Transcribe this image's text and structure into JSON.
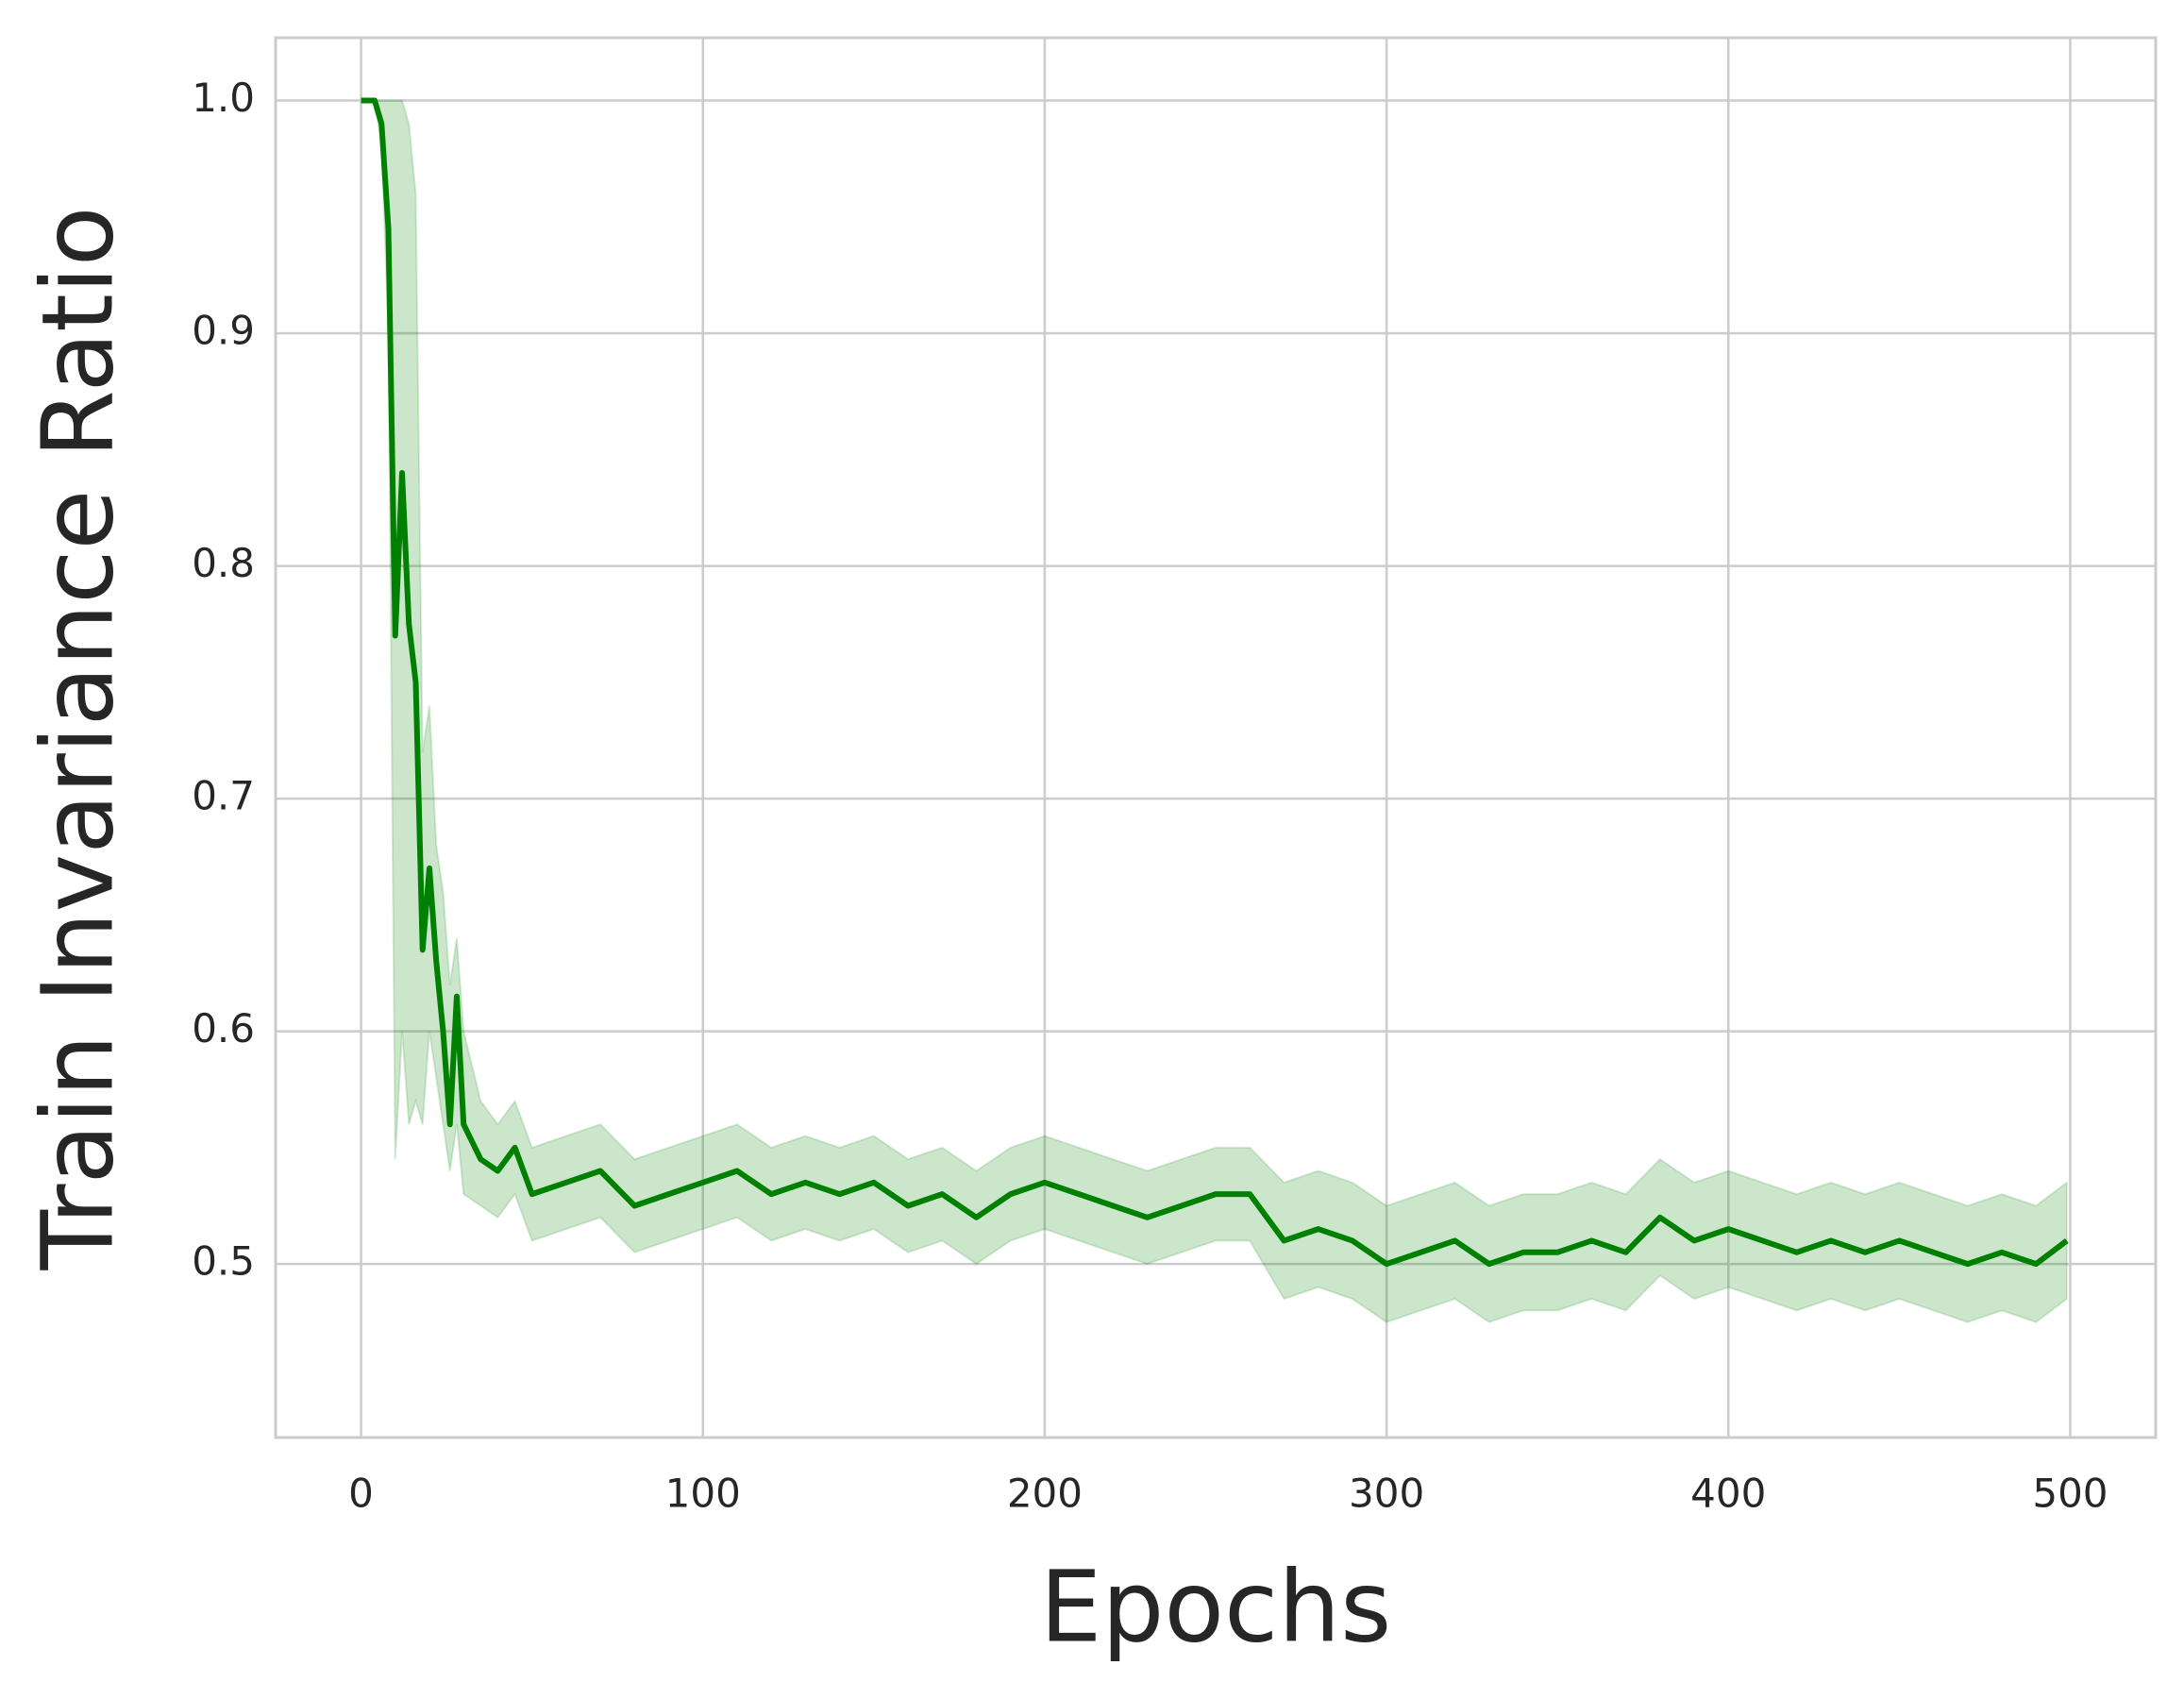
{
  "chart_data": {
    "type": "line",
    "xlabel": "Epochs",
    "ylabel": "Train Invariance Ratio",
    "x": [
      0,
      2,
      4,
      6,
      8,
      10,
      12,
      14,
      16,
      18,
      20,
      22,
      24,
      26,
      28,
      30,
      35,
      40,
      45,
      50,
      60,
      70,
      80,
      90,
      100,
      110,
      120,
      130,
      140,
      150,
      160,
      170,
      180,
      190,
      200,
      210,
      220,
      230,
      240,
      250,
      260,
      270,
      280,
      290,
      300,
      310,
      320,
      330,
      340,
      350,
      360,
      370,
      380,
      390,
      400,
      410,
      420,
      430,
      440,
      450,
      460,
      470,
      480,
      490,
      499
    ],
    "series": [
      {
        "color": "#008000",
        "values": [
          1,
          1,
          1,
          0.99,
          0.945,
          0.77,
          0.84,
          0.775,
          0.75,
          0.635,
          0.67,
          0.63,
          0.6,
          0.56,
          0.615,
          0.56,
          0.545,
          0.54,
          0.55,
          0.53,
          0.535,
          0.54,
          0.525,
          0.53,
          0.535,
          0.54,
          0.53,
          0.535,
          0.53,
          0.535,
          0.525,
          0.53,
          0.52,
          0.53,
          0.535,
          0.53,
          0.525,
          0.52,
          0.525,
          0.53,
          0.53,
          0.51,
          0.515,
          0.51,
          0.5,
          0.505,
          0.51,
          0.5,
          0.505,
          0.505,
          0.51,
          0.505,
          0.52,
          0.51,
          0.515,
          0.51,
          0.505,
          0.51,
          0.505,
          0.51,
          0.505,
          0.5,
          0.505,
          0.5,
          0.51
        ],
        "lower": [
          1,
          1,
          1,
          0.98,
          0.9,
          0.545,
          0.6,
          0.56,
          0.57,
          0.56,
          0.6,
          0.58,
          0.56,
          0.54,
          0.56,
          0.53,
          0.525,
          0.52,
          0.53,
          0.51,
          0.515,
          0.52,
          0.505,
          0.51,
          0.515,
          0.52,
          0.51,
          0.515,
          0.51,
          0.515,
          0.505,
          0.51,
          0.5,
          0.51,
          0.515,
          0.51,
          0.505,
          0.5,
          0.505,
          0.51,
          0.51,
          0.485,
          0.49,
          0.485,
          0.475,
          0.48,
          0.485,
          0.475,
          0.48,
          0.48,
          0.485,
          0.48,
          0.495,
          0.485,
          0.49,
          0.485,
          0.48,
          0.485,
          0.48,
          0.485,
          0.48,
          0.475,
          0.48,
          0.475,
          0.485
        ],
        "upper": [
          1,
          1,
          1,
          1,
          1,
          1,
          1,
          0.99,
          0.96,
          0.72,
          0.74,
          0.68,
          0.66,
          0.62,
          0.64,
          0.6,
          0.57,
          0.56,
          0.57,
          0.55,
          0.555,
          0.56,
          0.545,
          0.55,
          0.555,
          0.56,
          0.55,
          0.555,
          0.55,
          0.555,
          0.545,
          0.55,
          0.54,
          0.55,
          0.555,
          0.55,
          0.545,
          0.54,
          0.545,
          0.55,
          0.55,
          0.535,
          0.54,
          0.535,
          0.525,
          0.53,
          0.535,
          0.525,
          0.53,
          0.53,
          0.535,
          0.53,
          0.545,
          0.535,
          0.54,
          0.535,
          0.53,
          0.535,
          0.53,
          0.535,
          0.53,
          0.525,
          0.53,
          0.525,
          0.535
        ]
      }
    ],
    "xlim": [
      -25,
      525
    ],
    "ylim": [
      0.4254,
      1.027
    ],
    "xticks": [
      0,
      100,
      200,
      300,
      400,
      500
    ],
    "yticks": [
      0.5,
      0.6,
      0.7,
      0.8,
      0.9,
      {
        "value": 1,
        "label": "1.0"
      }
    ],
    "grid": true
  }
}
